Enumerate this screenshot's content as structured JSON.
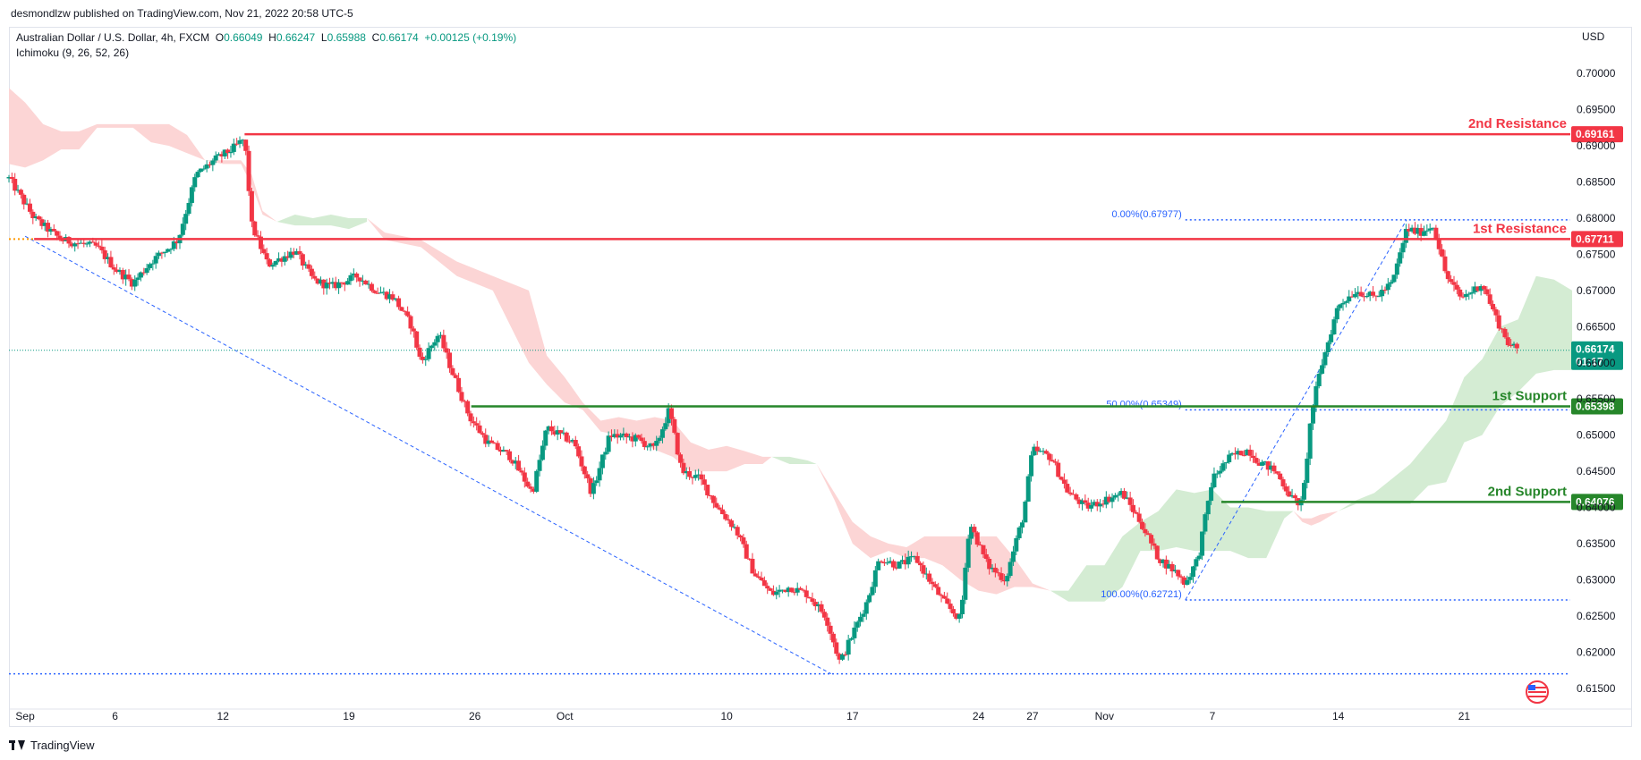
{
  "header": {
    "publisher": "desmondlzw published on TradingView.com, Nov 21, 2022 20:58 UTC-5"
  },
  "legend": {
    "symbol": "Australian Dollar / U.S. Dollar, 4h, FXCM",
    "open_label": "O",
    "open": "0.66049",
    "high_label": "H",
    "high": "0.66247",
    "low_label": "L",
    "low": "0.65988",
    "close_label": "C",
    "close": "0.66174",
    "change": "+0.00125 (+0.19%)",
    "indicator": "Ichimoku (9, 26, 52, 26)"
  },
  "currency": "USD",
  "footer": {
    "brand": "TradingView"
  },
  "colors": {
    "up": "#089981",
    "down": "#f23645",
    "resistance": "#f23645",
    "support": "#26862a",
    "cloud_bear": "#fcd5d5",
    "cloud_bull": "#d4ecd3",
    "fib": "#2962ff",
    "price_tag": "#089981"
  },
  "chart_data": {
    "type": "candlestick",
    "title": "Australian Dollar / U.S. Dollar, 4h, FXCM",
    "timeframe": "4h",
    "ylim": [
      0.6125,
      0.7025
    ],
    "y_ticks": [
      "0.70000",
      "0.69500",
      "0.69000",
      "0.68500",
      "0.68000",
      "0.67500",
      "0.67000",
      "0.66500",
      "0.66000",
      "0.65500",
      "0.65000",
      "0.64500",
      "0.64000",
      "0.63500",
      "0.63000",
      "0.62500",
      "0.62000",
      "0.61500"
    ],
    "x_ticks": [
      {
        "label": "Sep",
        "x": 0.0
      },
      {
        "label": "6",
        "x": 5.0
      },
      {
        "label": "12",
        "x": 11.0
      },
      {
        "label": "19",
        "x": 18.0
      },
      {
        "label": "26",
        "x": 25.0
      },
      {
        "label": "Oct",
        "x": 30.0
      },
      {
        "label": "10",
        "x": 39.0
      },
      {
        "label": "17",
        "x": 46.0
      },
      {
        "label": "24",
        "x": 53.0
      },
      {
        "label": "27",
        "x": 56.0
      },
      {
        "label": "Nov",
        "x": 60.0
      },
      {
        "label": "7",
        "x": 66.0
      },
      {
        "label": "14",
        "x": 73.0
      },
      {
        "label": "21",
        "x": 80.0
      }
    ],
    "x_range": [
      -0.9,
      85.9
    ],
    "price_path": [
      [
        -0.9,
        0.6855
      ],
      [
        0.5,
        0.68
      ],
      [
        2.0,
        0.677
      ],
      [
        4.0,
        0.676
      ],
      [
        5.0,
        0.673
      ],
      [
        6.0,
        0.671
      ],
      [
        7.0,
        0.674
      ],
      [
        8.5,
        0.677
      ],
      [
        9.5,
        0.686
      ],
      [
        10.5,
        0.688
      ],
      [
        11.5,
        0.6895
      ],
      [
        12.2,
        0.691
      ],
      [
        12.6,
        0.679
      ],
      [
        13.5,
        0.6735
      ],
      [
        15.0,
        0.6755
      ],
      [
        16.0,
        0.6715
      ],
      [
        17.0,
        0.6705
      ],
      [
        18.5,
        0.672
      ],
      [
        19.5,
        0.67
      ],
      [
        20.5,
        0.669
      ],
      [
        21.5,
        0.665
      ],
      [
        22.0,
        0.66
      ],
      [
        23.0,
        0.664
      ],
      [
        23.7,
        0.659
      ],
      [
        24.7,
        0.6525
      ],
      [
        25.7,
        0.649
      ],
      [
        27.0,
        0.647
      ],
      [
        28.2,
        0.642
      ],
      [
        29.0,
        0.651
      ],
      [
        30.5,
        0.649
      ],
      [
        31.5,
        0.642
      ],
      [
        32.5,
        0.65
      ],
      [
        34.0,
        0.6495
      ],
      [
        35.0,
        0.648
      ],
      [
        35.8,
        0.6535
      ],
      [
        36.5,
        0.645
      ],
      [
        37.5,
        0.644
      ],
      [
        38.5,
        0.64
      ],
      [
        39.5,
        0.637
      ],
      [
        40.5,
        0.631
      ],
      [
        41.5,
        0.628
      ],
      [
        42.5,
        0.629
      ],
      [
        43.5,
        0.628
      ],
      [
        44.5,
        0.625
      ],
      [
        45.3,
        0.6185
      ],
      [
        46.0,
        0.6225
      ],
      [
        46.8,
        0.627
      ],
      [
        47.5,
        0.633
      ],
      [
        48.5,
        0.632
      ],
      [
        49.5,
        0.633
      ],
      [
        50.5,
        0.629
      ],
      [
        51.2,
        0.6265
      ],
      [
        52.0,
        0.6245
      ],
      [
        52.5,
        0.638
      ],
      [
        53.5,
        0.632
      ],
      [
        54.5,
        0.63
      ],
      [
        55.5,
        0.639
      ],
      [
        56.0,
        0.648
      ],
      [
        57.0,
        0.647
      ],
      [
        58.0,
        0.642
      ],
      [
        59.0,
        0.64
      ],
      [
        60.0,
        0.641
      ],
      [
        61.0,
        0.642
      ],
      [
        62.0,
        0.638
      ],
      [
        63.0,
        0.633
      ],
      [
        64.0,
        0.631
      ],
      [
        64.5,
        0.6295
      ],
      [
        65.2,
        0.633
      ],
      [
        66.0,
        0.644
      ],
      [
        67.0,
        0.647
      ],
      [
        68.0,
        0.648
      ],
      [
        68.5,
        0.6465
      ],
      [
        69.5,
        0.645
      ],
      [
        70.5,
        0.641
      ],
      [
        71.0,
        0.6405
      ],
      [
        71.5,
        0.653
      ],
      [
        72.0,
        0.659
      ],
      [
        73.0,
        0.668
      ],
      [
        74.0,
        0.67
      ],
      [
        75.0,
        0.669
      ],
      [
        76.0,
        0.671
      ],
      [
        76.8,
        0.6785
      ],
      [
        77.5,
        0.678
      ],
      [
        78.3,
        0.679
      ],
      [
        79.0,
        0.672
      ],
      [
        79.8,
        0.669
      ],
      [
        80.5,
        0.67
      ],
      [
        81.0,
        0.671
      ],
      [
        81.8,
        0.666
      ],
      [
        82.5,
        0.6625
      ],
      [
        83.0,
        0.6617
      ]
    ],
    "ichimoku_cloud": [
      {
        "x": [
          -0.9,
          0.0,
          1.0,
          2.0,
          3.0,
          4.0,
          5.0,
          6.0,
          7.0,
          8.0,
          9.0,
          10.0,
          11.0,
          12.0,
          12.6,
          13.2,
          14.0
        ],
        "a": [
          0.698,
          0.696,
          0.693,
          0.692,
          0.692,
          0.6925,
          0.6925,
          0.6925,
          0.6905,
          0.69,
          0.689,
          0.688,
          0.688,
          0.688,
          0.686,
          0.681,
          0.6795
        ],
        "b": [
          0.6875,
          0.687,
          0.688,
          0.6895,
          0.6895,
          0.693,
          0.693,
          0.693,
          0.693,
          0.693,
          0.6915,
          0.688,
          0.6875,
          0.6875,
          0.6845,
          0.6805,
          0.6795
        ],
        "kind": "bear"
      },
      {
        "x": [
          14.0,
          15.0,
          16.0,
          17.0,
          18.0,
          19.0
        ],
        "a": [
          0.6795,
          0.6805,
          0.68,
          0.6805,
          0.68,
          0.68
        ],
        "b": [
          0.6795,
          0.679,
          0.679,
          0.679,
          0.6785,
          0.6795
        ],
        "kind": "bull"
      },
      {
        "x": [
          19.0,
          20.0,
          22.0,
          24.0,
          26.0,
          28.0,
          29.0,
          30.0,
          31.0,
          32.0,
          33.0,
          34.0,
          35.0,
          36.0,
          37.0,
          38.0,
          39.0,
          40.0,
          41.0,
          41.5
        ],
        "a": [
          0.68,
          0.677,
          0.676,
          0.672,
          0.67,
          0.67,
          0.661,
          0.658,
          0.6545,
          0.652,
          0.6525,
          0.652,
          0.6525,
          0.652,
          0.649,
          0.648,
          0.6485,
          0.6478,
          0.647,
          0.647
        ],
        "b": [
          0.68,
          0.678,
          0.677,
          0.674,
          0.672,
          0.66,
          0.657,
          0.6545,
          0.6535,
          0.6505,
          0.65,
          0.6495,
          0.648,
          0.647,
          0.645,
          0.645,
          0.645,
          0.646,
          0.646,
          0.647
        ],
        "kind": "bear"
      },
      {
        "x": [
          41.5,
          42.5,
          43.5,
          44.0
        ],
        "a": [
          0.647,
          0.647,
          0.6465,
          0.646
        ],
        "b": [
          0.647,
          0.646,
          0.646,
          0.646
        ],
        "kind": "bull"
      },
      {
        "x": [
          44.0,
          45.0,
          46.0,
          47.0,
          48.0,
          49.0,
          50.0,
          51.0,
          52.0,
          53.0,
          54.0,
          55.0,
          56.0,
          57.0
        ],
        "a": [
          0.646,
          0.642,
          0.638,
          0.636,
          0.635,
          0.6345,
          0.636,
          0.636,
          0.636,
          0.636,
          0.636,
          0.633,
          0.6295,
          0.6285
        ],
        "b": [
          0.646,
          0.641,
          0.635,
          0.633,
          0.634,
          0.633,
          0.633,
          0.632,
          0.63,
          0.6285,
          0.628,
          0.629,
          0.629,
          0.6285
        ],
        "kind": "bear"
      },
      {
        "x": [
          57.0,
          58.0,
          59.0,
          60.0,
          61.0,
          62.0,
          63.0,
          64.0,
          65.0,
          66.0,
          67.0,
          68.0,
          69.0,
          70.0,
          70.5
        ],
        "a": [
          0.6285,
          0.6285,
          0.632,
          0.632,
          0.636,
          0.638,
          0.6395,
          0.6425,
          0.642,
          0.6425,
          0.64,
          0.64,
          0.6395,
          0.6395,
          0.6395
        ],
        "b": [
          0.6285,
          0.627,
          0.627,
          0.627,
          0.629,
          0.634,
          0.634,
          0.6345,
          0.634,
          0.634,
          0.634,
          0.633,
          0.633,
          0.6385,
          0.6395
        ],
        "kind": "bull"
      },
      {
        "x": [
          70.5,
          71.0,
          71.5,
          72.0,
          73.0
        ],
        "a": [
          0.6395,
          0.638,
          0.6375,
          0.638,
          0.6395
        ],
        "b": [
          0.6395,
          0.6385,
          0.6385,
          0.639,
          0.6395
        ],
        "kind": "bear"
      },
      {
        "x": [
          73.0,
          74.0,
          75.0,
          76.0,
          77.0,
          78.0,
          79.0,
          80.0,
          81.0,
          82.0,
          83.0,
          84.0,
          85.0,
          86.0
        ],
        "a": [
          0.6395,
          0.641,
          0.642,
          0.644,
          0.646,
          0.649,
          0.652,
          0.658,
          0.6605,
          0.665,
          0.666,
          0.672,
          0.6715,
          0.67
        ],
        "b": [
          0.6395,
          0.6405,
          0.6405,
          0.6405,
          0.6405,
          0.643,
          0.6435,
          0.649,
          0.65,
          0.654,
          0.656,
          0.6585,
          0.659,
          0.659
        ],
        "kind": "bull"
      }
    ],
    "levels": [
      {
        "label": "2nd Resistance",
        "value": 0.69161,
        "tag": "0.69161",
        "kind": "resistance",
        "x_from": 12.2
      },
      {
        "label": "1st Resistance",
        "value": 0.67711,
        "tag": "0.67711",
        "kind": "resistance",
        "x_from": 0.5
      },
      {
        "label": "1st Support",
        "value": 0.65398,
        "tag": "0.65398",
        "kind": "support",
        "x_from": 24.8
      },
      {
        "label": "2nd Support",
        "value": 0.64076,
        "tag": "0.64076",
        "kind": "support",
        "x_from": 66.5
      }
    ],
    "fibonacci": [
      {
        "label": "0.00%(0.67977)",
        "value": 0.67977
      },
      {
        "label": "50.00%(0.65349)",
        "value": 0.65349
      },
      {
        "label": "100.00%(0.62721)",
        "value": 0.62721
      }
    ],
    "fib_x_from": 64.5,
    "fib_anchor_low": [
      64.5,
      0.62721
    ],
    "fib_anchor_high": [
      76.8,
      0.67977
    ],
    "trendline": [
      [
        0.0,
        0.6775
      ],
      [
        44.8,
        0.617
      ]
    ],
    "low_line": {
      "value": 0.617
    },
    "last_price": {
      "value": 0.66174,
      "tag": "0.66174",
      "countdown": "01:17"
    }
  }
}
